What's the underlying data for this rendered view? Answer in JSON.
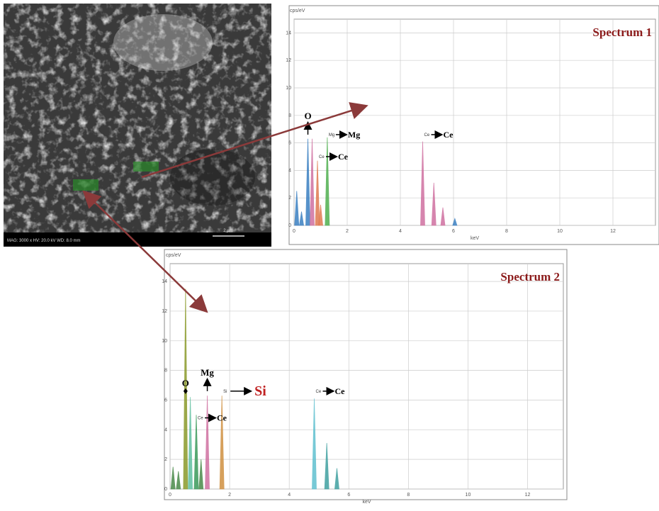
{
  "sem_image": {
    "caption": "MAG: 3000 x   HV: 20.0 kV   WD: 8.0 mm",
    "scale_bar": "2 µm"
  },
  "chart_data": [
    {
      "type": "spectrum",
      "title": "Spectrum 1",
      "y_unit": "cps/eV",
      "x_label": "keV",
      "x": [
        0.1,
        0.28,
        0.52,
        0.68,
        0.88,
        1.0,
        1.25,
        4.84,
        5.26,
        5.6,
        6.05
      ],
      "values": [
        2.5,
        1.0,
        6.3,
        6.3,
        4.7,
        1.5,
        6.4,
        6.1,
        3.1,
        1.3,
        0.5
      ],
      "colors": [
        "#3a7fc1",
        "#3a7fc1",
        "#3a7fc1",
        "#d070a0",
        "#e07a50",
        "#e07a50",
        "#50b050",
        "#d070a0",
        "#d070a0",
        "#d070a0",
        "#3a7fc1"
      ],
      "xlim": [
        0,
        13.6
      ],
      "ylim": [
        0,
        15
      ],
      "xticks": [
        0,
        2,
        4,
        6,
        8,
        10,
        12
      ],
      "yticks": [
        0,
        2,
        4,
        6,
        8,
        10,
        12,
        14
      ],
      "grid": true,
      "annotations": [
        {
          "text": "O",
          "x": 0.52,
          "y": 6.6,
          "style": "up",
          "color": "#000000"
        },
        {
          "small": "Mg",
          "text": "Mg",
          "x": 1.25,
          "y": 6.6,
          "style": "right",
          "color": "#000000"
        },
        {
          "small": "Ce",
          "text": "Ce",
          "x": 0.88,
          "y": 5.0,
          "style": "right",
          "color": "#000000"
        },
        {
          "small": "Ce",
          "text": "Ce",
          "x": 4.84,
          "y": 6.6,
          "style": "right",
          "color": "#000000"
        }
      ]
    },
    {
      "type": "spectrum",
      "title": "Spectrum 2",
      "y_unit": "cps/eV",
      "x_label": "keV",
      "x": [
        0.1,
        0.28,
        0.52,
        0.68,
        0.88,
        1.04,
        1.25,
        1.74,
        4.84,
        5.26,
        5.6
      ],
      "values": [
        1.5,
        1.2,
        13.5,
        6.2,
        5.0,
        2.0,
        6.3,
        6.3,
        6.1,
        3.1,
        1.4
      ],
      "colors": [
        "#4a8a4a",
        "#4a8a4a",
        "#8a9a2a",
        "#60c0a0",
        "#3a9a5a",
        "#4a8a4a",
        "#d070a0",
        "#d09040",
        "#60c0d0",
        "#40a0a0",
        "#40a0a0"
      ],
      "xlim": [
        0,
        13.2
      ],
      "ylim": [
        0,
        15.2
      ],
      "xticks": [
        0,
        2,
        4,
        6,
        8,
        10,
        12
      ],
      "yticks": [
        0,
        2,
        4,
        6,
        8,
        10,
        12,
        14
      ],
      "grid": true,
      "annotations": [
        {
          "text": "O",
          "x": 0.52,
          "y": 6.6,
          "style": "mark",
          "color": "#000000"
        },
        {
          "text": "Mg",
          "x": 1.25,
          "y": 6.6,
          "style": "up",
          "color": "#000000"
        },
        {
          "small": "Si",
          "text": "Si",
          "x": 1.74,
          "y": 6.6,
          "style": "right",
          "color": "#c02020"
        },
        {
          "small": "Ce",
          "text": "Ce",
          "x": 0.88,
          "y": 4.8,
          "style": "right",
          "color": "#000000"
        },
        {
          "small": "Ce",
          "text": "Ce",
          "x": 4.84,
          "y": 6.6,
          "style": "right",
          "color": "#000000"
        }
      ]
    }
  ]
}
